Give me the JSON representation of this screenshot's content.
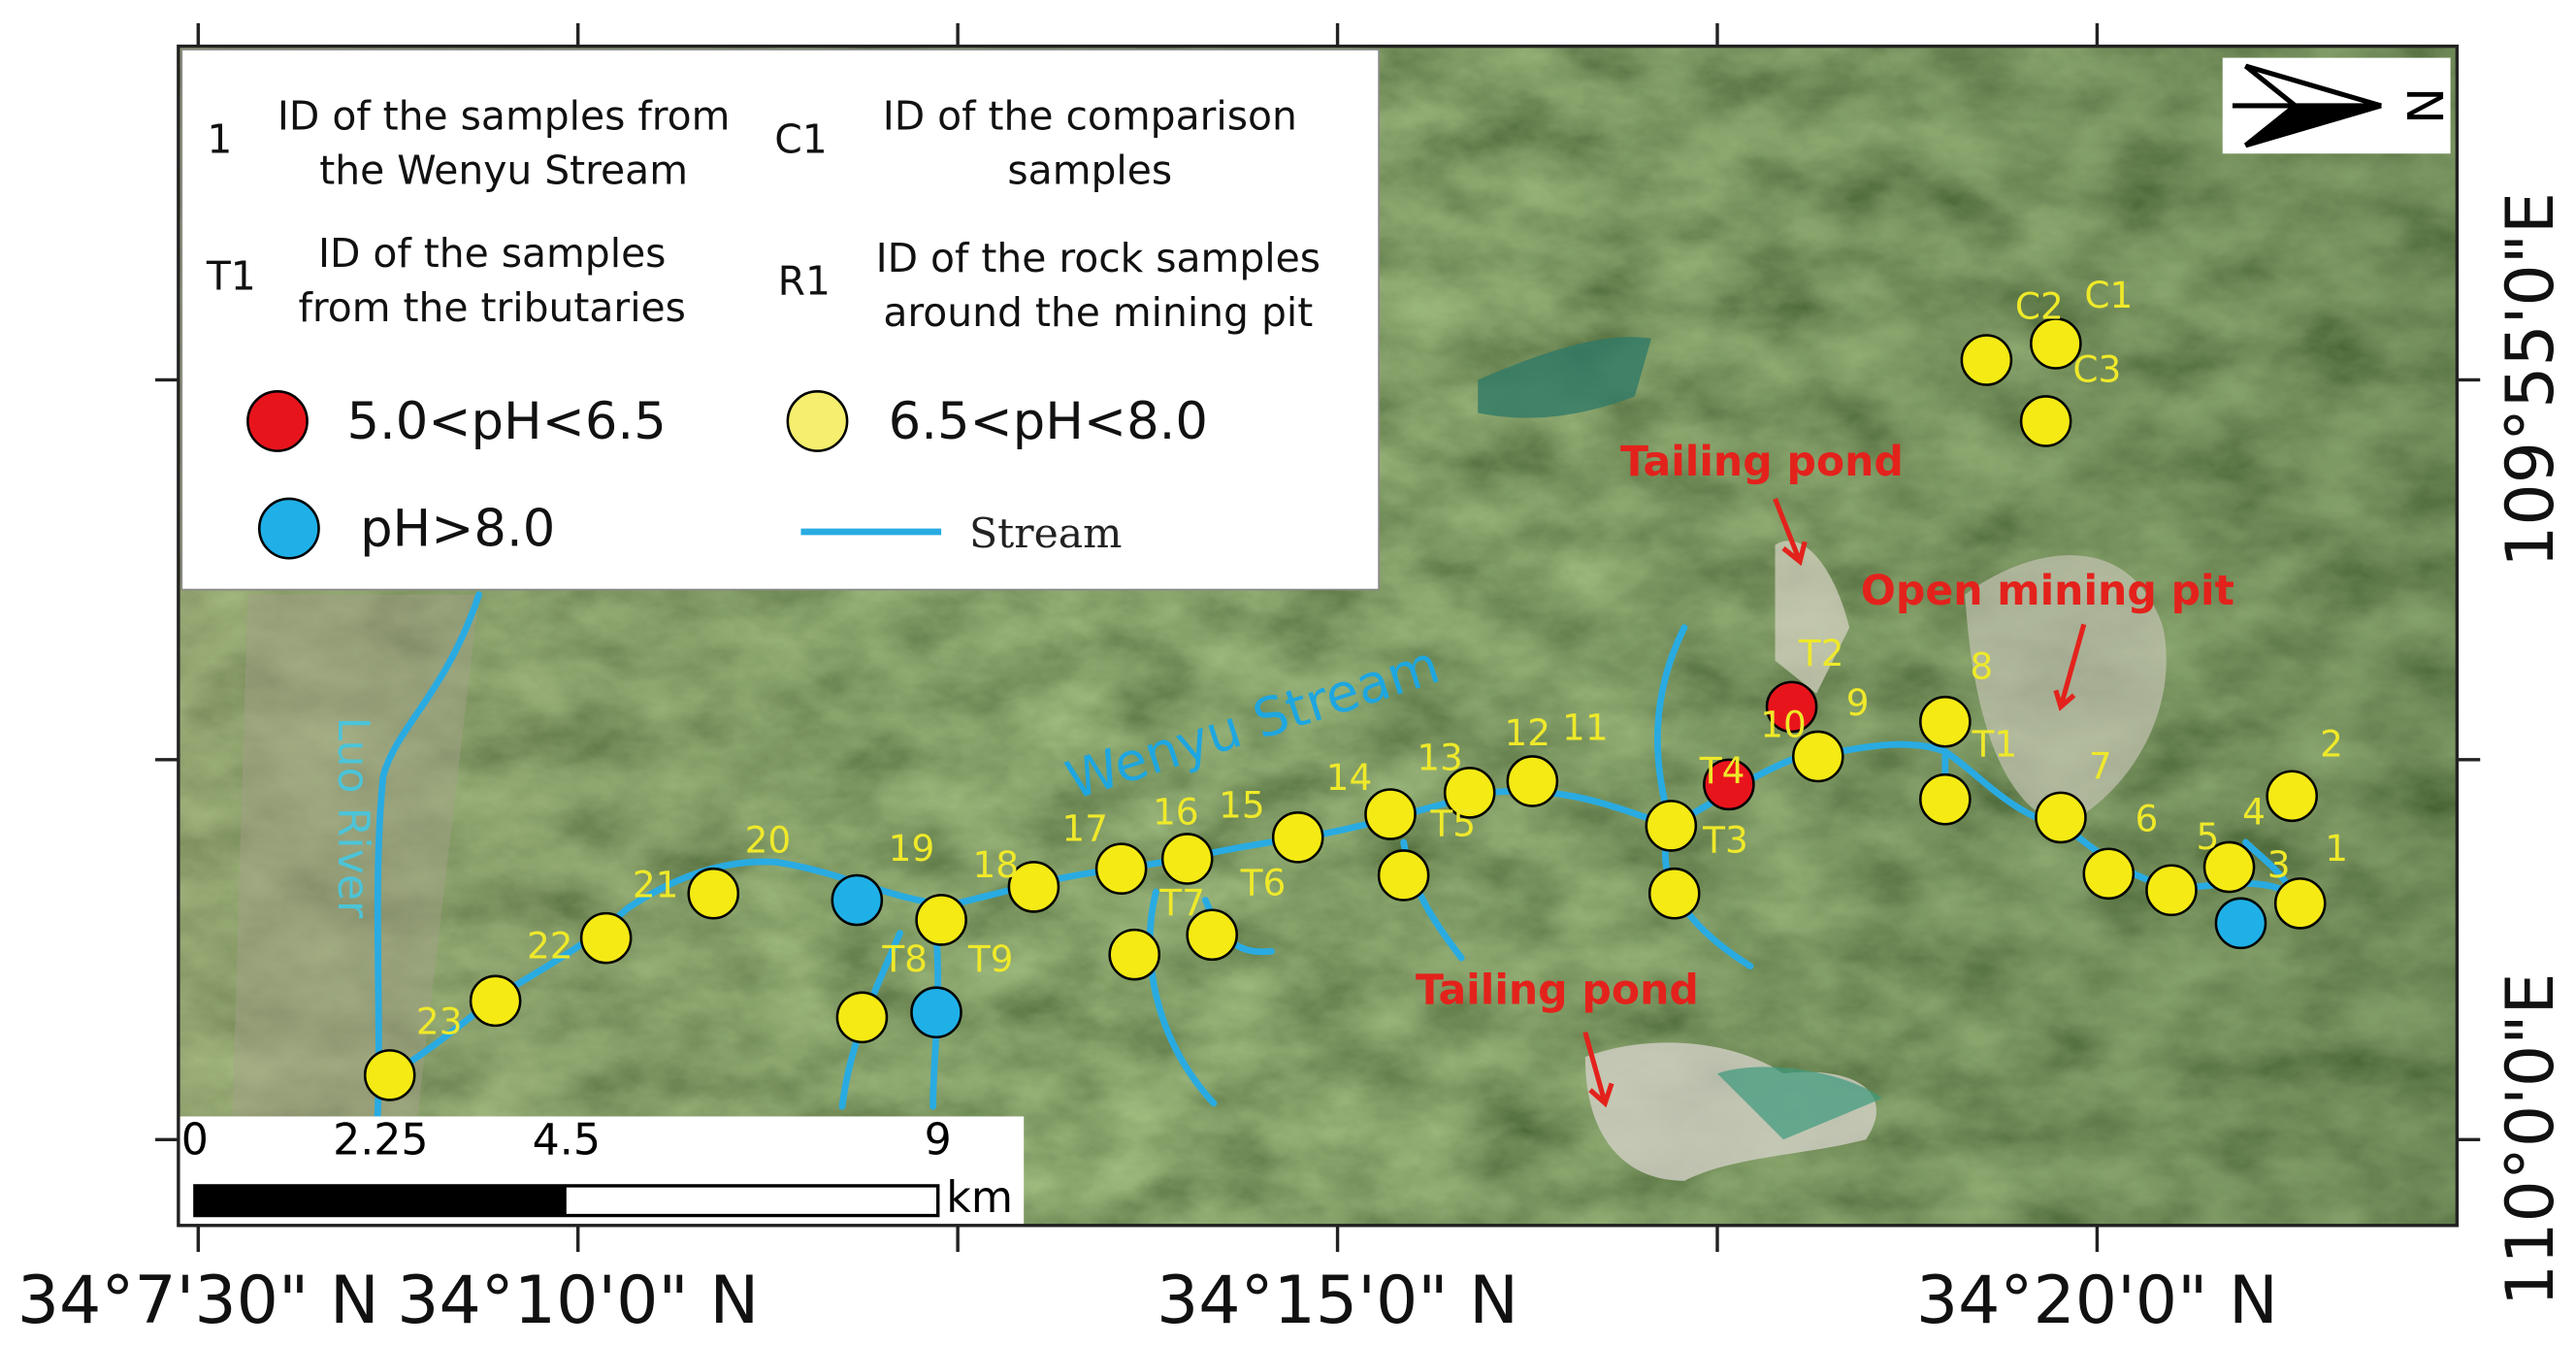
{
  "legend": {
    "items": [
      {
        "symbol": "1",
        "text": [
          "ID of the samples from",
          "the Wenyu Stream"
        ]
      },
      {
        "symbol": "C1",
        "text": [
          "ID of the comparison",
          "samples"
        ]
      },
      {
        "symbol": "T1",
        "text": [
          "ID of the samples",
          "from the tributaries"
        ]
      },
      {
        "symbol": "R1",
        "text": [
          "ID of the rock samples",
          "around the mining pit"
        ]
      }
    ],
    "classes": [
      {
        "label": "5.0<pH<6.5",
        "color": "#e8141c"
      },
      {
        "label": "6.5<pH<8.0",
        "color": "#f5ee6e"
      },
      {
        "label": "pH>8.0",
        "color": "#1fb0e8"
      }
    ],
    "stream": {
      "label": "Stream",
      "color": "#29abe2"
    }
  },
  "north": "N",
  "annotations": {
    "river": "Luo River",
    "stream": "Wenyu Stream",
    "tailing_ponds": [
      "Tailing pond",
      "Tailing pond"
    ],
    "pit": "Open mining pit"
  },
  "samples": [
    {
      "id": "1",
      "color": "#f5ea14"
    },
    {
      "id": "2",
      "color": "#f5ea14"
    },
    {
      "id": "3",
      "color": "#1fb0e8"
    },
    {
      "id": "4",
      "color": "#f5ea14"
    },
    {
      "id": "5",
      "color": "#f5ea14"
    },
    {
      "id": "6",
      "color": "#f5ea14"
    },
    {
      "id": "7",
      "color": "#f5ea14"
    },
    {
      "id": "8",
      "color": "#f5ea14"
    },
    {
      "id": "9",
      "color": "#f5ea14"
    },
    {
      "id": "10",
      "color": "#f5ea14"
    },
    {
      "id": "11",
      "color": "#f5ea14"
    },
    {
      "id": "12",
      "color": "#f5ea14"
    },
    {
      "id": "13",
      "color": "#f5ea14"
    },
    {
      "id": "14",
      "color": "#f5ea14"
    },
    {
      "id": "15",
      "color": "#f5ea14"
    },
    {
      "id": "16",
      "color": "#f5ea14"
    },
    {
      "id": "17",
      "color": "#f5ea14"
    },
    {
      "id": "18",
      "color": "#f5ea14"
    },
    {
      "id": "19",
      "color": "#1fb0e8"
    },
    {
      "id": "20",
      "color": "#f5ea14"
    },
    {
      "id": "21",
      "color": "#f5ea14"
    },
    {
      "id": "22",
      "color": "#f5ea14"
    },
    {
      "id": "23",
      "color": "#f5ea14"
    },
    {
      "id": "T1",
      "color": "#f5ea14"
    },
    {
      "id": "T2",
      "color": "#e8141c"
    },
    {
      "id": "T3",
      "color": "#f5ea14"
    },
    {
      "id": "T4",
      "color": "#e8141c"
    },
    {
      "id": "T5",
      "color": "#f5ea14"
    },
    {
      "id": "T6",
      "color": "#f5ea14"
    },
    {
      "id": "T7",
      "color": "#f5ea14"
    },
    {
      "id": "T8",
      "color": "#f5ea14"
    },
    {
      "id": "T9",
      "color": "#1fb0e8"
    },
    {
      "id": "C1",
      "color": "#f5ea14"
    },
    {
      "id": "C2",
      "color": "#f5ea14"
    },
    {
      "id": "C3",
      "color": "#f5ea14"
    }
  ],
  "x_labels": [
    "34°7'30\" N",
    "34°10'0\" N",
    "34°15'0\" N",
    "34°20'0\" N"
  ],
  "y_labels": [
    "109°55'0\"E",
    "110°0'0\"E"
  ],
  "scale_bar": {
    "values": [
      0,
      2.25,
      4.5,
      9
    ],
    "unit": "km"
  }
}
